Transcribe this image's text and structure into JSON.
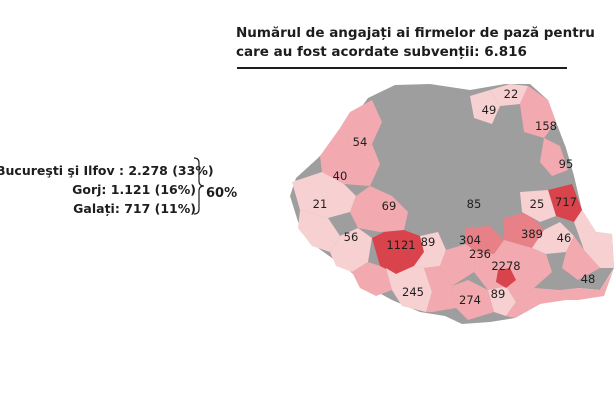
{
  "title": "Numărul de angajați ai firmelor de pază pentru care au fost acordate subvenții: 6.816",
  "summary": {
    "lines": [
      "Bucureşti şi Ilfov : 2.278 (33%)",
      "Gorj: 1.121 (16%)",
      "Galați: 717 (11%)"
    ],
    "group_total": "60%"
  },
  "colors": {
    "no_data": "#9e9e9e",
    "level_1": "#f7d0d2",
    "level_2": "#f2aab0",
    "level_3": "#e88087",
    "level_4": "#d8434c"
  },
  "map_labels": [
    "22",
    "49",
    "158",
    "54",
    "95",
    "40",
    "21",
    "69",
    "85",
    "25",
    "717",
    "56",
    "1121",
    "89",
    "304",
    "389",
    "46",
    "236",
    "2278",
    "245",
    "274",
    "89",
    "48"
  ]
}
